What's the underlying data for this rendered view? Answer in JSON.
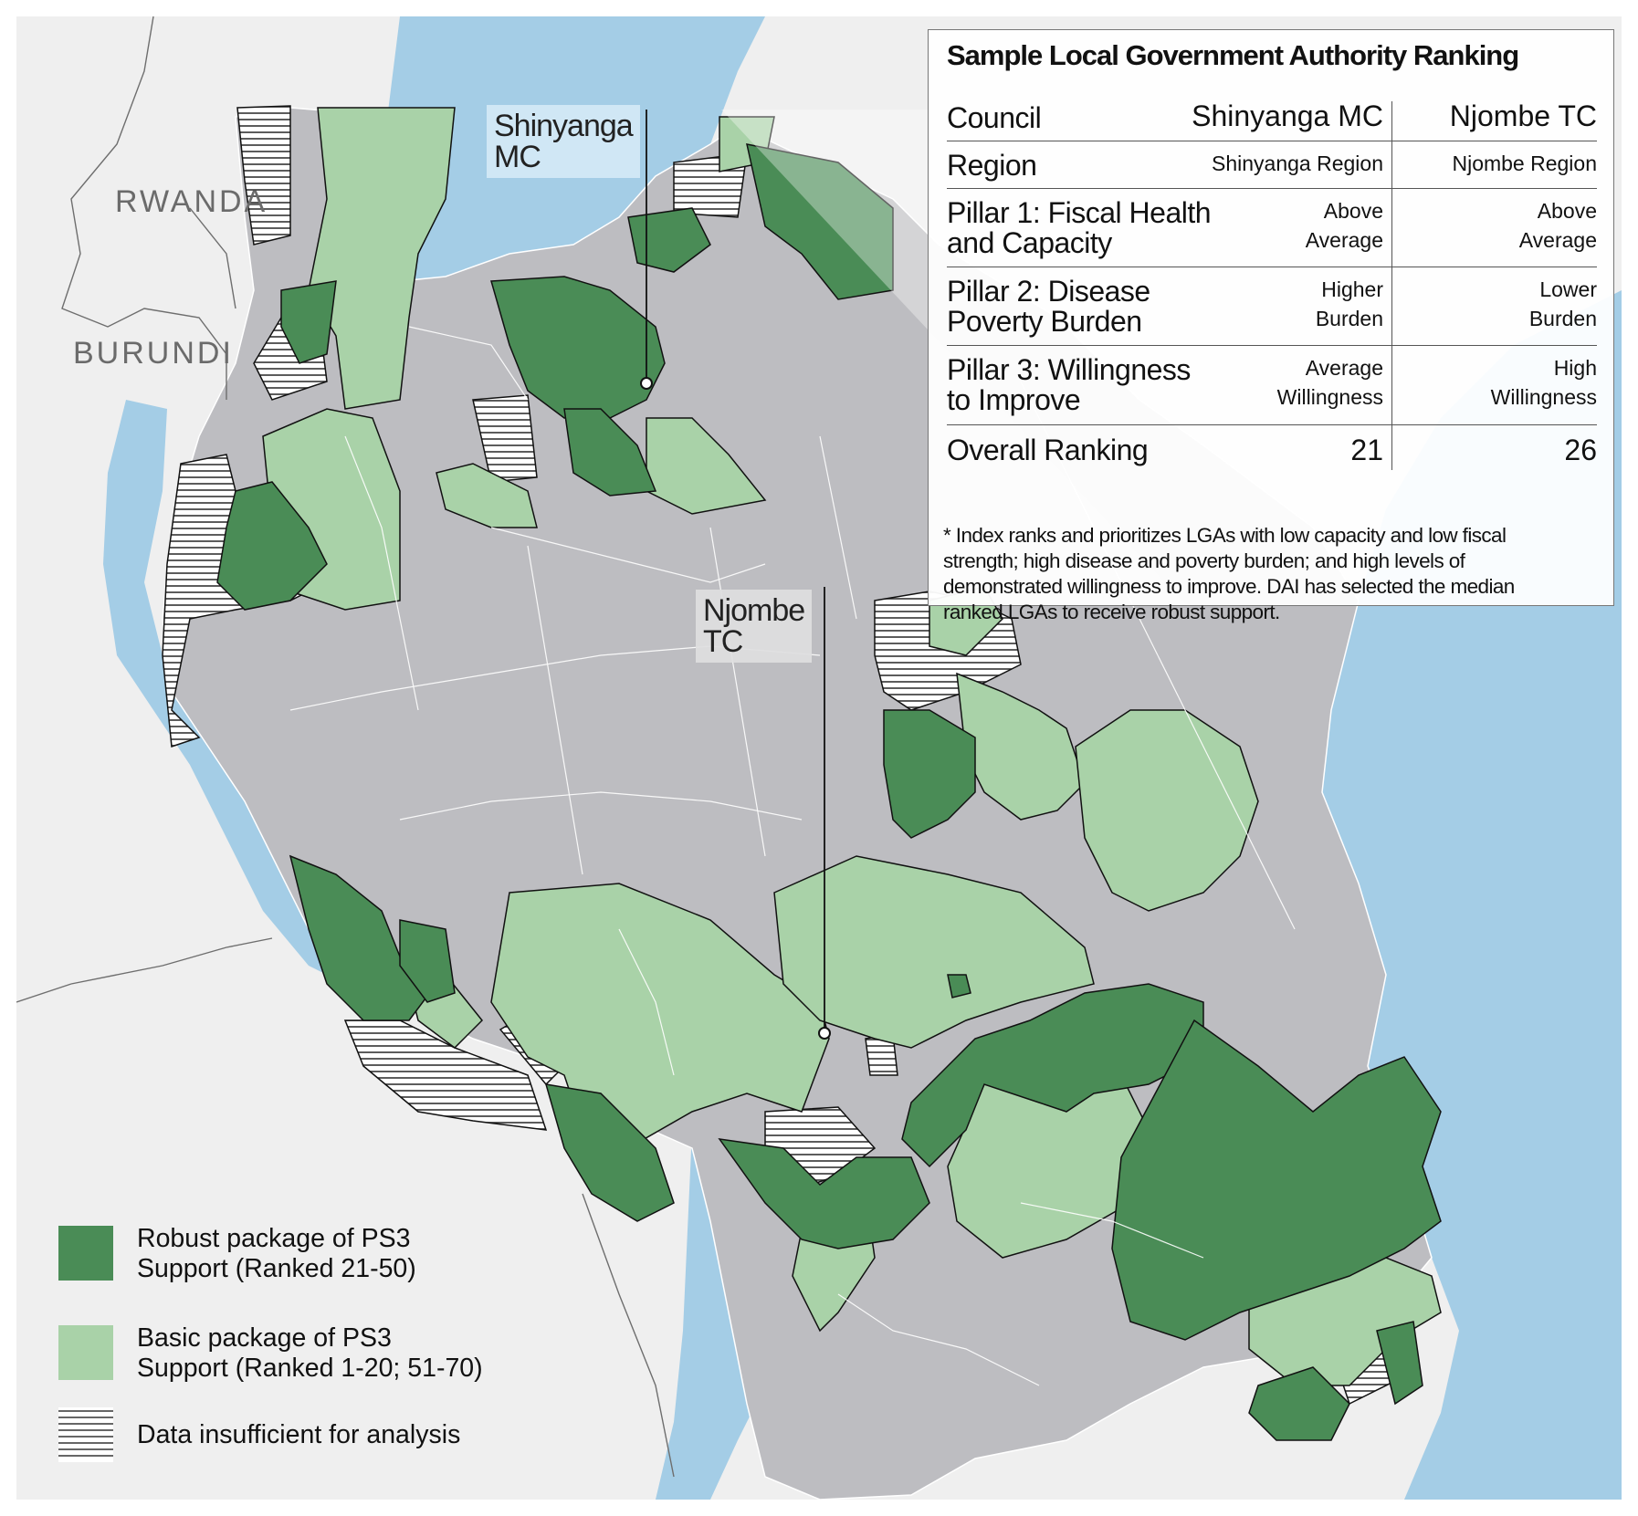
{
  "countries": {
    "rwanda": "RWANDA",
    "burundi": "BURUNDI"
  },
  "callouts": {
    "shinyanga": [
      "Shinyanga",
      "MC"
    ],
    "njombe": [
      "Njombe",
      "TC"
    ]
  },
  "panel": {
    "title": "Sample Local Government Authority Ranking",
    "header": {
      "label": "Council",
      "c1": "Shinyanga MC",
      "c2": "Njombe TC"
    },
    "rows": [
      {
        "label": [
          "Region"
        ],
        "c1": [
          "Shinyanga Region"
        ],
        "c2": [
          "Njombe Region"
        ]
      },
      {
        "label": [
          "Pillar 1: Fiscal Health",
          "and Capacity"
        ],
        "c1": [
          "Above",
          "Average"
        ],
        "c2": [
          "Above",
          "Average"
        ]
      },
      {
        "label": [
          "Pillar 2: Disease",
          "Poverty Burden"
        ],
        "c1": [
          "Higher",
          "Burden"
        ],
        "c2": [
          "Lower",
          "Burden"
        ]
      },
      {
        "label": [
          "Pillar 3: Willingness",
          "to Improve"
        ],
        "c1": [
          "Average",
          "Willingness"
        ],
        "c2": [
          "High",
          "Willingness"
        ]
      }
    ],
    "overall": {
      "label": "Overall Ranking",
      "c1": "21",
      "c2": "26"
    },
    "footnote": [
      "* Index ranks and prioritizes LGAs with low capacity and low fiscal",
      "strength; high disease and poverty burden; and high levels of",
      "demonstrated willingness to improve. DAI has selected the median",
      "ranked LGAs to receive robust support."
    ]
  },
  "legend": [
    {
      "lines": [
        "Robust package of PS3",
        "Support (Ranked 21-50)"
      ],
      "type": "robust"
    },
    {
      "lines": [
        "Basic package of PS3",
        "Support (Ranked 1-20; 51-70)"
      ],
      "type": "basic"
    },
    {
      "lines": [
        "Data insufficient for analysis"
      ],
      "type": "hatched"
    }
  ],
  "colors": {
    "water": "#a4cde6",
    "land_other": "#efefef",
    "country_base": "#bdbdc1",
    "robust": "#4a8c56",
    "basic": "#a9d2a8",
    "hatch_line": "#333333",
    "border": "#111111",
    "district_line": "#ffffff"
  }
}
